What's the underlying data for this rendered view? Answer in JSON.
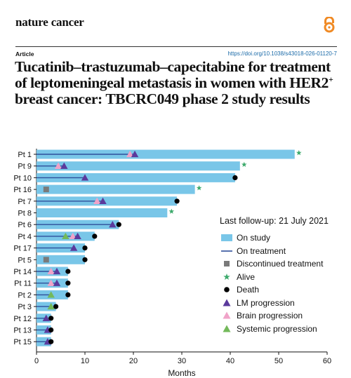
{
  "header": {
    "journal": "nature cancer",
    "article_label": "Article",
    "doi": "https://doi.org/10.1038/s43018-026-01120-7",
    "title_pre": "Tucatinib–trastuzumab–capecitabine for treatment of leptomeningeal metastasis in women with HER2",
    "title_sup": "+",
    "title_post": " breast cancer: TBCRC049 phase 2 study results"
  },
  "legend": {
    "title": "Last follow-up: 21 July 2021",
    "items": [
      {
        "key": "on_study",
        "label": "On study"
      },
      {
        "key": "on_treatment",
        "label": "On treatment"
      },
      {
        "key": "discontinued",
        "label": "Discontinued treatment"
      },
      {
        "key": "alive",
        "label": "Alive"
      },
      {
        "key": "death",
        "label": "Death"
      },
      {
        "key": "lm",
        "label": "LM progression"
      },
      {
        "key": "brain",
        "label": "Brain progression"
      },
      {
        "key": "systemic",
        "label": "Systemic progression"
      }
    ]
  },
  "colors": {
    "on_study": "#79c6e8",
    "on_treatment": "#2f4f9a",
    "discontinued": "#7a7a7a",
    "alive": "#3daa6c",
    "death": "#000000",
    "lm": "#5b3a9c",
    "brain": "#f0a3c8",
    "systemic": "#73b95a"
  },
  "chart_data": {
    "type": "swimmer",
    "xlabel": "Months",
    "xlim": [
      0,
      60
    ],
    "xticks": [
      0,
      10,
      20,
      30,
      40,
      50,
      60
    ],
    "patients": [
      {
        "label": "Pt 1",
        "study": 53.3,
        "treatment": 20.5,
        "discontinued": null,
        "outcome": "alive",
        "lm": [
          20.3
        ],
        "brain": [
          19.3
        ],
        "systemic": []
      },
      {
        "label": "Pt 9",
        "study": 42.0,
        "treatment": 6.0,
        "discontinued": null,
        "outcome": "alive",
        "lm": [
          5.7
        ],
        "brain": [
          4.5
        ],
        "systemic": []
      },
      {
        "label": "Pt 10",
        "study": 41.0,
        "treatment": 10.0,
        "discontinued": null,
        "outcome": "death",
        "lm": [
          10.0
        ],
        "brain": [],
        "systemic": []
      },
      {
        "label": "Pt 16",
        "study": 32.7,
        "treatment": null,
        "discontinued": 2.0,
        "outcome": "alive",
        "lm": [],
        "brain": [],
        "systemic": []
      },
      {
        "label": "Pt 7",
        "study": 29.0,
        "treatment": 13.5,
        "discontinued": null,
        "outcome": "death",
        "lm": [
          13.7
        ],
        "brain": [
          12.5
        ],
        "systemic": []
      },
      {
        "label": "Pt 8",
        "study": 27.0,
        "treatment": null,
        "discontinued": null,
        "outcome": "alive",
        "lm": [],
        "brain": [],
        "systemic": []
      },
      {
        "label": "Pt 6",
        "study": 17.0,
        "treatment": 15.5,
        "discontinued": null,
        "outcome": "death",
        "lm": [
          15.7
        ],
        "brain": [],
        "systemic": []
      },
      {
        "label": "Pt 4",
        "study": 12.0,
        "treatment": 8.5,
        "discontinued": null,
        "outcome": "death",
        "lm": [
          8.5
        ],
        "brain": [
          7.5
        ],
        "systemic": [
          6.0
        ]
      },
      {
        "label": "Pt 17",
        "study": 10.0,
        "treatment": 7.5,
        "discontinued": null,
        "outcome": "death",
        "lm": [
          7.7
        ],
        "brain": [],
        "systemic": []
      },
      {
        "label": "Pt 5",
        "study": 10.0,
        "treatment": null,
        "discontinued": 2.0,
        "outcome": "death",
        "lm": [],
        "brain": [],
        "systemic": []
      },
      {
        "label": "Pt 14",
        "study": 6.5,
        "treatment": 4.0,
        "discontinued": null,
        "outcome": "death",
        "lm": [
          4.2
        ],
        "brain": [
          3.0
        ],
        "systemic": []
      },
      {
        "label": "Pt 11",
        "study": 6.5,
        "treatment": 4.0,
        "discontinued": null,
        "outcome": "death",
        "lm": [
          4.2
        ],
        "brain": [
          3.0
        ],
        "systemic": []
      },
      {
        "label": "Pt 2",
        "study": 6.5,
        "treatment": 3.0,
        "discontinued": null,
        "outcome": "death",
        "lm": [],
        "brain": [],
        "systemic": [
          3.0
        ]
      },
      {
        "label": "Pt 3",
        "study": 4.0,
        "treatment": 3.0,
        "discontinued": null,
        "outcome": "death",
        "lm": [],
        "brain": [],
        "systemic": [
          3.0
        ]
      },
      {
        "label": "Pt 12",
        "study": 3.0,
        "treatment": 2.0,
        "discontinued": null,
        "outcome": "death",
        "lm": [
          2.0
        ],
        "brain": [],
        "systemic": []
      },
      {
        "label": "Pt 13",
        "study": 3.0,
        "treatment": 2.0,
        "discontinued": null,
        "outcome": "death",
        "lm": [
          2.3
        ],
        "brain": [],
        "systemic": []
      },
      {
        "label": "Pt 15",
        "study": 3.0,
        "treatment": 2.0,
        "discontinued": null,
        "outcome": "death",
        "lm": [
          2.3
        ],
        "brain": [],
        "systemic": []
      }
    ]
  }
}
